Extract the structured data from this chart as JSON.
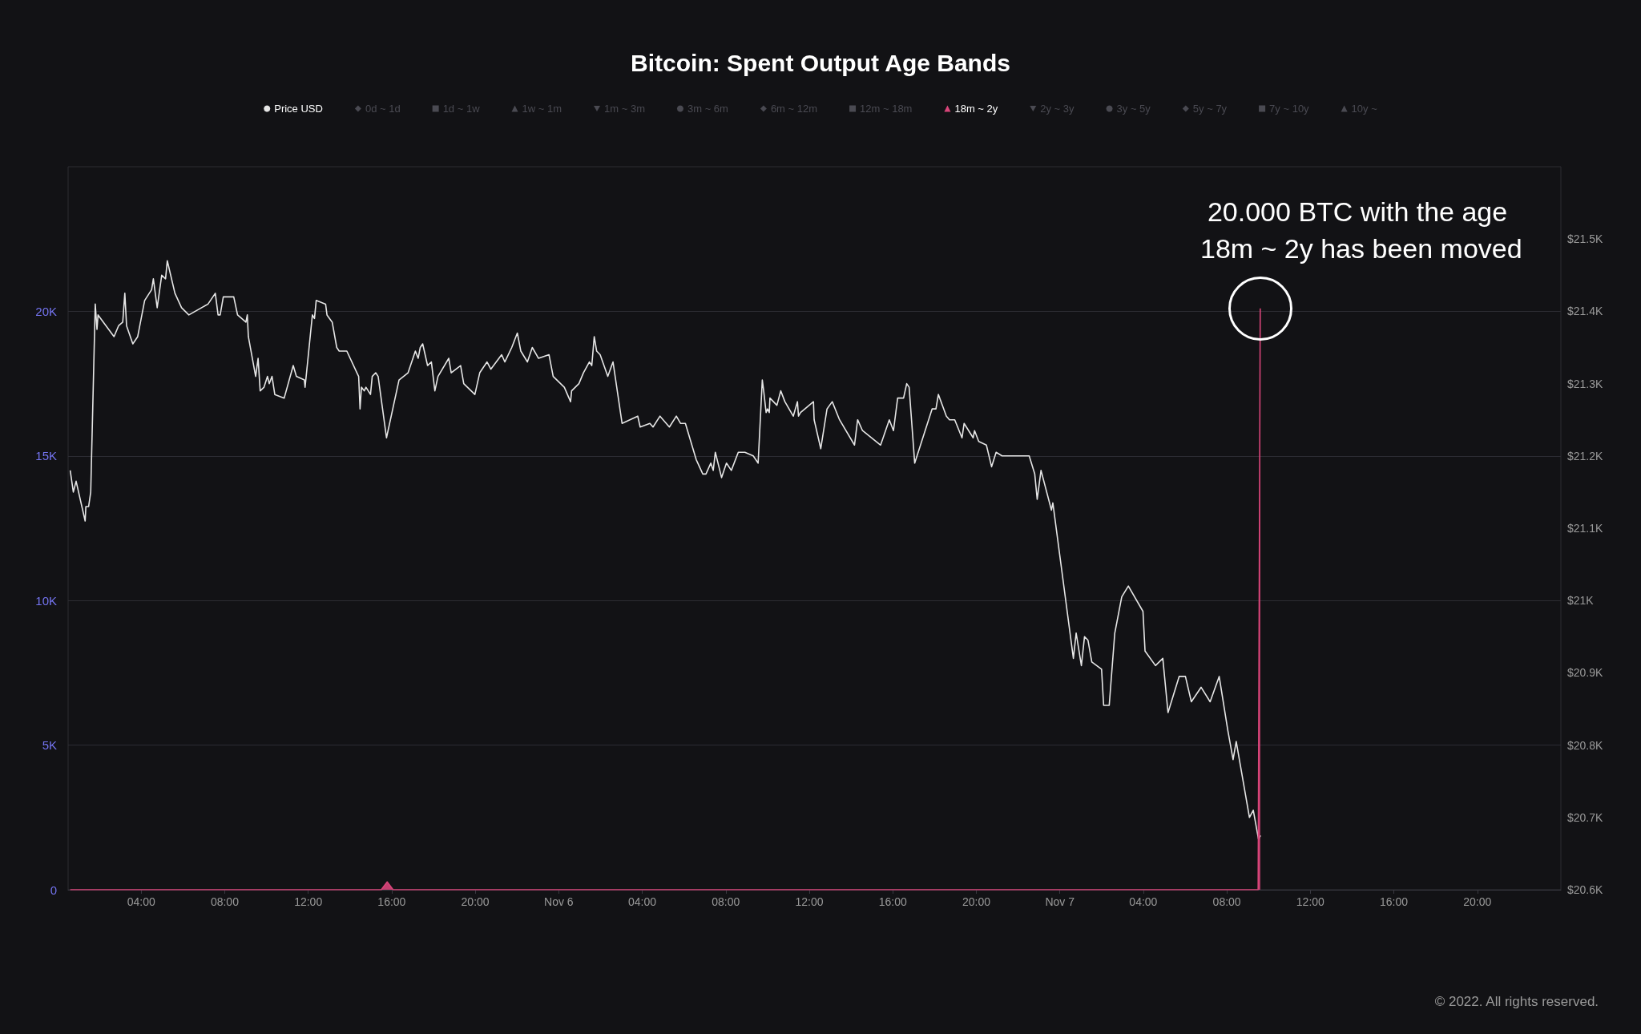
{
  "chart_data": {
    "type": "line",
    "title": "Bitcoin: Spent Output Age Bands",
    "legend": "top",
    "grid": "y",
    "xlim": [
      "2022-11-05T00:30",
      "2022-11-08T00:00"
    ],
    "xticks": [
      {
        "value": "2022-11-05T04:00",
        "label": "04:00"
      },
      {
        "value": "2022-11-05T08:00",
        "label": "08:00"
      },
      {
        "value": "2022-11-05T12:00",
        "label": "12:00"
      },
      {
        "value": "2022-11-05T16:00",
        "label": "16:00"
      },
      {
        "value": "2022-11-05T20:00",
        "label": "20:00"
      },
      {
        "value": "2022-11-06T00:00",
        "label": "Nov 6"
      },
      {
        "value": "2022-11-06T04:00",
        "label": "04:00"
      },
      {
        "value": "2022-11-06T08:00",
        "label": "08:00"
      },
      {
        "value": "2022-11-06T12:00",
        "label": "12:00"
      },
      {
        "value": "2022-11-06T16:00",
        "label": "16:00"
      },
      {
        "value": "2022-11-06T20:00",
        "label": "20:00"
      },
      {
        "value": "2022-11-07T00:00",
        "label": "Nov 7"
      },
      {
        "value": "2022-11-07T04:00",
        "label": "04:00"
      },
      {
        "value": "2022-11-07T08:00",
        "label": "08:00"
      },
      {
        "value": "2022-11-07T12:00",
        "label": "12:00"
      },
      {
        "value": "2022-11-07T16:00",
        "label": "16:00"
      },
      {
        "value": "2022-11-07T20:00",
        "label": "20:00"
      }
    ],
    "ylim": [
      0,
      25000
    ],
    "yticks": [
      0,
      {
        "value": 5000,
        "label": "5K"
      },
      {
        "value": 10000,
        "label": "10K"
      },
      {
        "value": 15000,
        "label": "15K"
      },
      {
        "value": 20000,
        "label": "20K"
      }
    ],
    "y2lim": [
      20600,
      21600
    ],
    "y2ticks": [
      {
        "value": 20600,
        "label": "$20.6K"
      },
      {
        "value": 20700,
        "label": "$20.7K"
      },
      {
        "value": 20800,
        "label": "$20.8K"
      },
      {
        "value": 20900,
        "label": "$20.9K"
      },
      {
        "value": 21000,
        "label": "$21K"
      },
      {
        "value": 21100,
        "label": "$21.1K"
      },
      {
        "value": 21200,
        "label": "$21.2K"
      },
      {
        "value": 21300,
        "label": "$21.3K"
      },
      {
        "value": 21400,
        "label": "$21.4K"
      },
      {
        "value": 21500,
        "label": "$21.5K"
      }
    ],
    "annotations": [
      {
        "text": "20.000 BTC with the age 18m ~ 2y has been moved",
        "x": "2022-11-07T09:36",
        "y": 20100
      },
      "© 2022. All rights reserved."
    ],
    "series": [
      {
        "name": "Price USD",
        "axis": "y2",
        "color": "#e6e6e6",
        "x": [
          "2022-11-05T00:36",
          "2022-11-05T00:45",
          "2022-11-05T00:53",
          "2022-11-05T01:19",
          "2022-11-05T01:21",
          "2022-11-05T01:29",
          "2022-11-05T01:35",
          "2022-11-05T01:48",
          "2022-11-05T01:53",
          "2022-11-05T01:56",
          "2022-11-05T02:42",
          "2022-11-05T02:55",
          "2022-11-05T03:07",
          "2022-11-05T03:13",
          "2022-11-05T03:18",
          "2022-11-05T03:36",
          "2022-11-05T03:50",
          "2022-11-05T04:10",
          "2022-11-05T04:30",
          "2022-11-05T04:35",
          "2022-11-05T04:46",
          "2022-11-05T04:59",
          "2022-11-05T05:10",
          "2022-11-05T05:15",
          "2022-11-05T05:37",
          "2022-11-05T05:56",
          "2022-11-05T06:17",
          "2022-11-05T07:12",
          "2022-11-05T07:19",
          "2022-11-05T07:33",
          "2022-11-05T07:41",
          "2022-11-05T07:47",
          "2022-11-05T07:56",
          "2022-11-05T08:26",
          "2022-11-05T08:37",
          "2022-11-05T09:01",
          "2022-11-05T09:05",
          "2022-11-05T09:08",
          "2022-11-05T09:29",
          "2022-11-05T09:36",
          "2022-11-05T09:42",
          "2022-11-05T09:53",
          "2022-11-05T10:03",
          "2022-11-05T10:08",
          "2022-11-05T10:16",
          "2022-11-05T10:24",
          "2022-11-05T10:51",
          "2022-11-05T11:17",
          "2022-11-05T11:26",
          "2022-11-05T11:49",
          "2022-11-05T11:51",
          "2022-11-05T12:12",
          "2022-11-05T12:18",
          "2022-11-05T12:23",
          "2022-11-05T12:50",
          "2022-11-05T12:54",
          "2022-11-05T13:09",
          "2022-11-05T13:22",
          "2022-11-05T13:29",
          "2022-11-05T13:51",
          "2022-11-05T14:20",
          "2022-11-05T14:25",
          "2022-11-05T14:29",
          "2022-11-05T14:33",
          "2022-11-05T14:41",
          "2022-11-05T14:46",
          "2022-11-05T14:59",
          "2022-11-05T15:04",
          "2022-11-05T15:14",
          "2022-11-05T15:21",
          "2022-11-05T15:45",
          "2022-11-05T16:21",
          "2022-11-05T16:47",
          "2022-11-05T17:08",
          "2022-11-05T17:16",
          "2022-11-05T17:22",
          "2022-11-05T17:29",
          "2022-11-05T17:43",
          "2022-11-05T17:54",
          "2022-11-05T18:04",
          "2022-11-05T18:13",
          "2022-11-05T18:44",
          "2022-11-05T18:51",
          "2022-11-05T19:18",
          "2022-11-05T19:27",
          "2022-11-05T19:59",
          "2022-11-05T20:13",
          "2022-11-05T20:34",
          "2022-11-05T20:45",
          "2022-11-05T21:16",
          "2022-11-05T21:25",
          "2022-11-05T21:45",
          "2022-11-05T22:01",
          "2022-11-05T22:11",
          "2022-11-05T22:30",
          "2022-11-05T22:44",
          "2022-11-05T23:02",
          "2022-11-05T23:32",
          "2022-11-05T23:44",
          "2022-11-06T00:16",
          "2022-11-06T00:34",
          "2022-11-06T00:37",
          "2022-11-06T00:58",
          "2022-11-06T01:11",
          "2022-11-06T01:28",
          "2022-11-06T01:35",
          "2022-11-06T01:42",
          "2022-11-06T01:49",
          "2022-11-06T01:59",
          "2022-11-06T02:21",
          "2022-11-06T02:36",
          "2022-11-06T03:02",
          "2022-11-06T03:47",
          "2022-11-06T03:54",
          "2022-11-06T04:22",
          "2022-11-06T04:31",
          "2022-11-06T04:51",
          "2022-11-06T05:18",
          "2022-11-06T05:38",
          "2022-11-06T05:50",
          "2022-11-06T06:04",
          "2022-11-06T06:35",
          "2022-11-06T06:54",
          "2022-11-06T07:03",
          "2022-11-06T07:17",
          "2022-11-06T07:24",
          "2022-11-06T07:30",
          "2022-11-06T07:48",
          "2022-11-06T08:02",
          "2022-11-06T08:16",
          "2022-11-06T08:36",
          "2022-11-06T08:55",
          "2022-11-06T09:19",
          "2022-11-06T09:33",
          "2022-11-06T09:45",
          "2022-11-06T09:49",
          "2022-11-06T09:56",
          "2022-11-06T10:00",
          "2022-11-06T10:05",
          "2022-11-06T10:07",
          "2022-11-06T10:27",
          "2022-11-06T10:38",
          "2022-11-06T10:50",
          "2022-11-06T11:14",
          "2022-11-06T11:26",
          "2022-11-06T11:29",
          "2022-11-06T11:35",
          "2022-11-06T12:12",
          "2022-11-06T12:14",
          "2022-11-06T12:33",
          "2022-11-06T12:51",
          "2022-11-06T13:06",
          "2022-11-06T13:27",
          "2022-11-06T14:10",
          "2022-11-06T14:19",
          "2022-11-06T14:33",
          "2022-11-06T15:25",
          "2022-11-06T15:50",
          "2022-11-06T16:02",
          "2022-11-06T16:14",
          "2022-11-06T16:31",
          "2022-11-06T16:40",
          "2022-11-06T16:47",
          "2022-11-06T17:03",
          "2022-11-06T17:53",
          "2022-11-06T18:04",
          "2022-11-06T18:11",
          "2022-11-06T18:34",
          "2022-11-06T18:43",
          "2022-11-06T18:58",
          "2022-11-06T19:19",
          "2022-11-06T19:25",
          "2022-11-06T19:51",
          "2022-11-06T19:55",
          "2022-11-06T20:07",
          "2022-11-06T20:29",
          "2022-11-06T20:44",
          "2022-11-06T20:57",
          "2022-11-06T21:14",
          "2022-11-06T21:32",
          "2022-11-06T22:32",
          "2022-11-06T22:48",
          "2022-11-06T22:55",
          "2022-11-06T23:06",
          "2022-11-06T23:36",
          "2022-11-06T23:40",
          "2022-11-07T00:39",
          "2022-11-07T00:47",
          "2022-11-07T01:02",
          "2022-11-07T01:11",
          "2022-11-07T01:21",
          "2022-11-07T01:32",
          "2022-11-07T02:00",
          "2022-11-07T02:06",
          "2022-11-07T02:22",
          "2022-11-07T02:38",
          "2022-11-07T02:58",
          "2022-11-07T03:17",
          "2022-11-07T03:59",
          "2022-11-07T04:05",
          "2022-11-07T04:35",
          "2022-11-07T04:56",
          "2022-11-07T05:11",
          "2022-11-07T05:43",
          "2022-11-07T06:01",
          "2022-11-07T06:18",
          "2022-11-07T06:46",
          "2022-11-07T07:12",
          "2022-11-07T07:38",
          "2022-11-07T08:03",
          "2022-11-07T08:18",
          "2022-11-07T08:27",
          "2022-11-07T09:05",
          "2022-11-07T09:16",
          "2022-11-07T09:31",
          "2022-11-07T09:37"
        ],
        "values": [
          21180,
          21150,
          21165,
          21110,
          21130,
          21130,
          21150,
          21410,
          21375,
          21395,
          21365,
          21380,
          21385,
          21425,
          21380,
          21355,
          21365,
          21415,
          21430,
          21445,
          21405,
          21450,
          21445,
          21470,
          21425,
          21405,
          21395,
          21410,
          21415,
          21425,
          21395,
          21395,
          21420,
          21420,
          21395,
          21385,
          21395,
          21365,
          21310,
          21335,
          21290,
          21295,
          21310,
          21300,
          21310,
          21285,
          21280,
          21325,
          21310,
          21305,
          21295,
          21395,
          21390,
          21415,
          21410,
          21395,
          21385,
          21350,
          21345,
          21345,
          21315,
          21310,
          21265,
          21295,
          21290,
          21295,
          21285,
          21310,
          21315,
          21310,
          21225,
          21305,
          21315,
          21345,
          21335,
          21350,
          21355,
          21325,
          21330,
          21290,
          21310,
          21335,
          21315,
          21325,
          21300,
          21285,
          21315,
          21330,
          21320,
          21340,
          21330,
          21350,
          21370,
          21345,
          21330,
          21350,
          21335,
          21340,
          21310,
          21295,
          21275,
          21290,
          21300,
          21315,
          21330,
          21325,
          21365,
          21345,
          21340,
          21310,
          21330,
          21245,
          21255,
          21240,
          21245,
          21240,
          21255,
          21240,
          21255,
          21245,
          21245,
          21195,
          21175,
          21175,
          21190,
          21180,
          21205,
          21170,
          21190,
          21180,
          21205,
          21205,
          21200,
          21190,
          21305,
          21290,
          21260,
          21265,
          21260,
          21280,
          21270,
          21290,
          21275,
          21255,
          21275,
          21255,
          21260,
          21275,
          21250,
          21210,
          21265,
          21275,
          21250,
          21215,
          21250,
          21235,
          21215,
          21250,
          21235,
          21280,
          21280,
          21300,
          21295,
          21190,
          21265,
          21265,
          21285,
          21255,
          21250,
          21250,
          21225,
          21245,
          21225,
          21235,
          21220,
          21215,
          21185,
          21205,
          21200,
          21200,
          21200,
          21175,
          21140,
          21180,
          21125,
          21135,
          20920,
          20955,
          20910,
          20950,
          20945,
          20915,
          20905,
          20855,
          20855,
          20955,
          21005,
          21020,
          20985,
          20930,
          20910,
          20920,
          20845,
          20895,
          20895,
          20860,
          20880,
          20860,
          20895,
          20820,
          20780,
          20805,
          20700,
          20710,
          20670,
          20675
        ]
      },
      {
        "name": "0d ~ 1d"
      },
      {
        "name": "1d ~ 1w"
      },
      {
        "name": "1w ~ 1m"
      },
      {
        "name": "1m ~ 3m"
      },
      {
        "name": "3m ~ 6m"
      },
      {
        "name": "6m ~ 12m"
      },
      {
        "name": "12m ~ 18m"
      },
      {
        "name": "18m ~ 2y",
        "type": "area",
        "color": "#d9457a",
        "x": [
          "2022-11-05T00:36",
          "2022-11-05T15:30",
          "2022-11-05T15:47",
          "2022-11-05T16:04",
          "2022-11-07T09:30",
          "2022-11-07T09:36"
        ],
        "values": [
          0,
          0,
          270,
          0,
          0,
          20100
        ]
      },
      {
        "name": "2y ~ 3y"
      },
      {
        "name": "3y ~ 5y"
      },
      {
        "name": "5y ~ 7y"
      },
      {
        "name": "7y ~ 10y"
      },
      {
        "name": "10y ~"
      }
    ]
  }
}
